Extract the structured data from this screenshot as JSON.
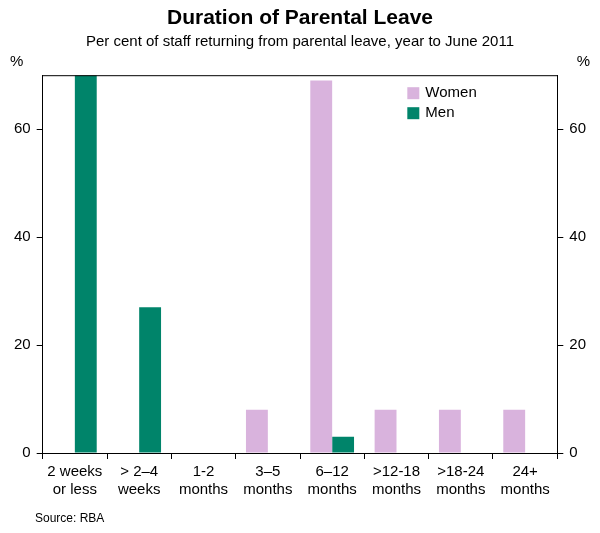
{
  "chart_data": {
    "type": "bar",
    "title": "Duration of Parental Leave",
    "subtitle": "Per cent of staff returning from parental leave, year to June 2011",
    "source": "Source: RBA",
    "ylabel": "%",
    "y2label": "%",
    "categories": [
      [
        "2 weeks",
        "or less"
      ],
      [
        "> 2–4",
        "weeks"
      ],
      [
        "1-2",
        "months"
      ],
      [
        "3–5",
        "months"
      ],
      [
        "6–12",
        "months"
      ],
      [
        ">12-18",
        "months"
      ],
      [
        ">18-24",
        "months"
      ],
      [
        "24+",
        "months"
      ]
    ],
    "series": [
      {
        "name": "Women",
        "color": "#d9b3dd",
        "values": [
          0,
          0,
          0,
          8,
          69,
          8,
          8,
          8
        ]
      },
      {
        "name": "Men",
        "color": "#00846a",
        "values": [
          70,
          27,
          0,
          0,
          3,
          0,
          0,
          0
        ]
      }
    ],
    "ylim": [
      0,
      70
    ],
    "yticks": [
      0,
      20,
      40,
      60
    ],
    "y2lim": [
      0,
      70
    ],
    "y2ticks": [
      0,
      20,
      40,
      60
    ],
    "grid": false,
    "legend": "upper right"
  }
}
